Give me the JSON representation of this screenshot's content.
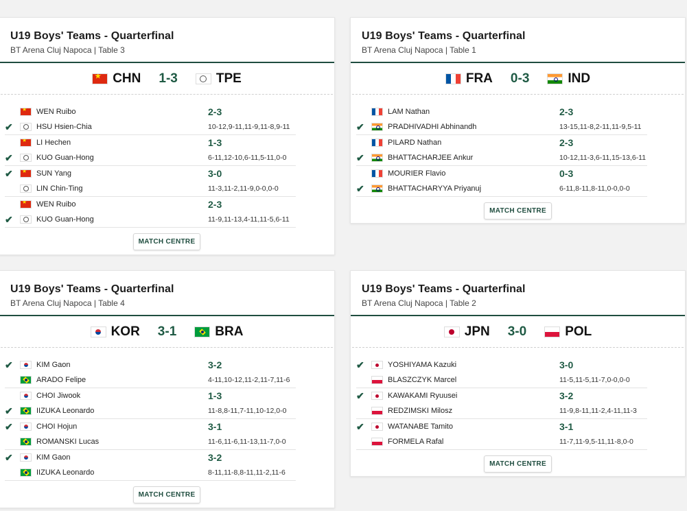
{
  "cards": [
    {
      "title": "U19 Boys' Teams - Quarterfinal",
      "venue": "BT Arena Cluj Napoca | Table 3",
      "team1": {
        "code": "CHN",
        "flag": "chn"
      },
      "team2": {
        "code": "TPE",
        "flag": "tpe"
      },
      "score": "1-3",
      "matches": [
        {
          "p1": "WEN Ruibo",
          "f1": "chn",
          "p2": "HSU Hsien-Chia",
          "f2": "tpe",
          "winner": 2,
          "result": "2-3",
          "sets": "10-12,9-11,11-9,11-8,9-11"
        },
        {
          "p1": "LI Hechen",
          "f1": "chn",
          "p2": "KUO Guan-Hong",
          "f2": "tpe",
          "winner": 2,
          "result": "1-3",
          "sets": "6-11,12-10,6-11,5-11,0-0"
        },
        {
          "p1": "SUN Yang",
          "f1": "chn",
          "p2": "LIN Chin-Ting",
          "f2": "tpe",
          "winner": 1,
          "result": "3-0",
          "sets": "11-3,11-2,11-9,0-0,0-0"
        },
        {
          "p1": "WEN Ruibo",
          "f1": "chn",
          "p2": "KUO Guan-Hong",
          "f2": "tpe",
          "winner": 2,
          "result": "2-3",
          "sets": "11-9,11-13,4-11,11-5,6-11"
        }
      ],
      "button": "MATCH CENTRE"
    },
    {
      "title": "U19 Boys' Teams - Quarterfinal",
      "venue": "BT Arena Cluj Napoca | Table 1",
      "team1": {
        "code": "FRA",
        "flag": "fra"
      },
      "team2": {
        "code": "IND",
        "flag": "ind"
      },
      "score": "0-3",
      "matches": [
        {
          "p1": "LAM Nathan",
          "f1": "fra",
          "p2": "PRADHIVADHI Abhinandh",
          "f2": "ind",
          "winner": 2,
          "result": "2-3",
          "sets": "13-15,11-8,2-11,11-9,5-11"
        },
        {
          "p1": "PILARD Nathan",
          "f1": "fra",
          "p2": "BHATTACHARJEE Ankur",
          "f2": "ind",
          "winner": 2,
          "result": "2-3",
          "sets": "10-12,11-3,6-11,15-13,6-11"
        },
        {
          "p1": "MOURIER Flavio",
          "f1": "fra",
          "p2": "BHATTACHARYYA Priyanuj",
          "f2": "ind",
          "winner": 2,
          "result": "0-3",
          "sets": "6-11,8-11,8-11,0-0,0-0"
        }
      ],
      "button": "MATCH CENTRE"
    },
    {
      "title": "U19 Boys' Teams - Quarterfinal",
      "venue": "BT Arena Cluj Napoca | Table 4",
      "team1": {
        "code": "KOR",
        "flag": "kor"
      },
      "team2": {
        "code": "BRA",
        "flag": "bra"
      },
      "score": "3-1",
      "matches": [
        {
          "p1": "KIM Gaon",
          "f1": "kor",
          "p2": "ARADO Felipe",
          "f2": "bra",
          "winner": 1,
          "result": "3-2",
          "sets": "4-11,10-12,11-2,11-7,11-6"
        },
        {
          "p1": "CHOI Jiwook",
          "f1": "kor",
          "p2": "IIZUKA Leonardo",
          "f2": "bra",
          "winner": 2,
          "result": "1-3",
          "sets": "11-8,8-11,7-11,10-12,0-0"
        },
        {
          "p1": "CHOI Hojun",
          "f1": "kor",
          "p2": "ROMANSKI Lucas",
          "f2": "bra",
          "winner": 1,
          "result": "3-1",
          "sets": "11-6,11-6,11-13,11-7,0-0"
        },
        {
          "p1": "KIM Gaon",
          "f1": "kor",
          "p2": "IIZUKA Leonardo",
          "f2": "bra",
          "winner": 1,
          "result": "3-2",
          "sets": "8-11,11-8,8-11,11-2,11-6"
        }
      ],
      "button": "MATCH CENTRE"
    },
    {
      "title": "U19 Boys' Teams - Quarterfinal",
      "venue": "BT Arena Cluj Napoca | Table 2",
      "team1": {
        "code": "JPN",
        "flag": "jpn"
      },
      "team2": {
        "code": "POL",
        "flag": "pol"
      },
      "score": "3-0",
      "matches": [
        {
          "p1": "YOSHIYAMA Kazuki",
          "f1": "jpn",
          "p2": "BLASZCZYK Marcel",
          "f2": "pol",
          "winner": 1,
          "result": "3-0",
          "sets": "11-5,11-5,11-7,0-0,0-0"
        },
        {
          "p1": "KAWAKAMI Ryuusei",
          "f1": "jpn",
          "p2": "REDZIMSKI Milosz",
          "f2": "pol",
          "winner": 1,
          "result": "3-2",
          "sets": "11-9,8-11,11-2,4-11,11-3"
        },
        {
          "p1": "WATANABE Tamito",
          "f1": "jpn",
          "p2": "FORMELA Rafal",
          "f2": "pol",
          "winner": 1,
          "result": "3-1",
          "sets": "11-7,11-9,5-11,11-8,0-0"
        }
      ],
      "button": "MATCH CENTRE"
    }
  ],
  "icons": {
    "check": "check-icon"
  },
  "colors": {
    "accent": "#1f5a44",
    "divider": "#1f4d3f"
  }
}
